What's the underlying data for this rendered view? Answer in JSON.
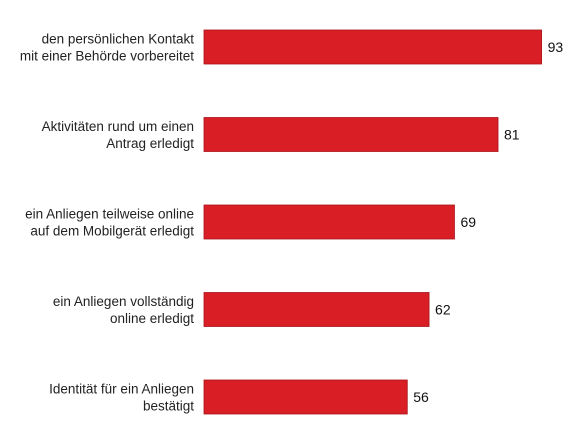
{
  "chart_data": {
    "type": "bar",
    "orientation": "horizontal",
    "categories": [
      [
        "den persönlichen Kontakt",
        "mit einer Behörde vorbereitet"
      ],
      [
        "Aktivitäten rund um einen",
        "Antrag erledigt"
      ],
      [
        "ein Anliegen teilweise online",
        "auf dem Mobilgerät erledigt"
      ],
      [
        "ein Anliegen vollständig",
        "online erledigt"
      ],
      [
        "Identität für ein Anliegen",
        "bestätigt"
      ]
    ],
    "values": [
      93,
      81,
      69,
      62,
      56
    ],
    "value_labels": [
      "93",
      "81",
      "69",
      "62",
      "56"
    ],
    "bar_color": "#d91e26",
    "bar_edge_color": "#a8141b",
    "xlim": [
      0,
      100
    ],
    "grid": false,
    "legend": "none"
  }
}
